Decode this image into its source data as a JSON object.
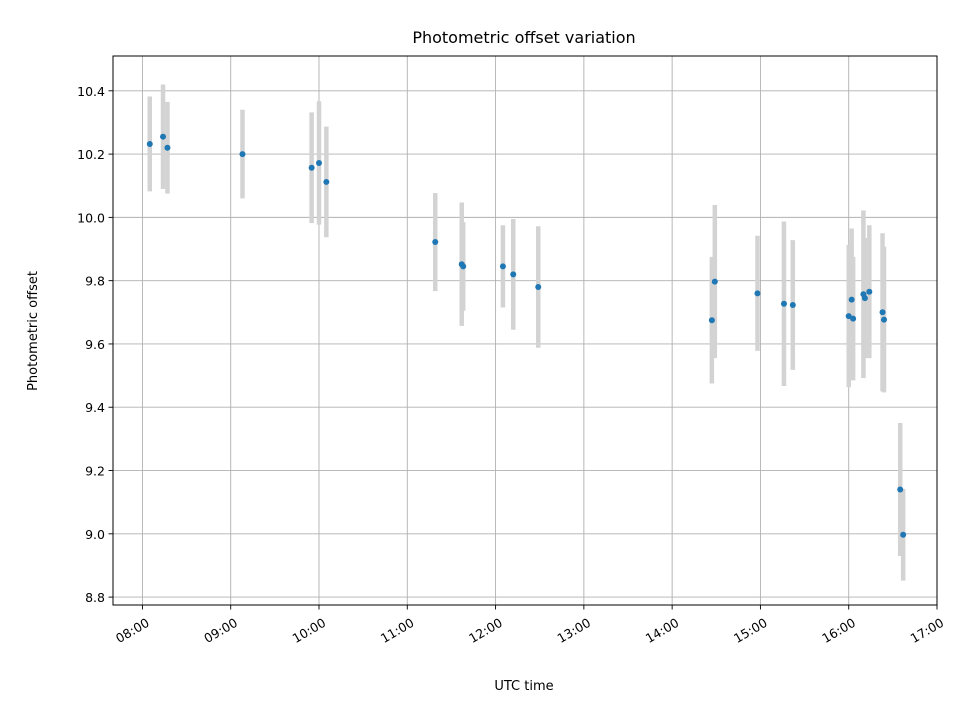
{
  "chart_data": {
    "type": "scatter",
    "title": "Photometric offset variation",
    "xlabel": "UTC time",
    "ylabel": "Photometric offset",
    "xlim": [
      "07:40",
      "17:00"
    ],
    "ylim": [
      8.775,
      10.51
    ],
    "x_ticks": [
      "08:00",
      "09:00",
      "10:00",
      "11:00",
      "12:00",
      "13:00",
      "14:00",
      "15:00",
      "16:00",
      "17:00"
    ],
    "y_ticks": [
      "8.8",
      "9.0",
      "9.2",
      "9.4",
      "9.6",
      "9.8",
      "10.0",
      "10.2",
      "10.4"
    ],
    "grid": true,
    "colors": {
      "point": "#1f77b4",
      "errorbar": "#d3d3d3",
      "grid": "#b0b0b0"
    },
    "points": [
      {
        "t": "08:05",
        "y": 10.232,
        "err": 0.15
      },
      {
        "t": "08:14",
        "y": 10.255,
        "err": 0.165
      },
      {
        "t": "08:17",
        "y": 10.22,
        "err": 0.145
      },
      {
        "t": "09:08",
        "y": 10.2,
        "err": 0.14
      },
      {
        "t": "09:55",
        "y": 10.157,
        "err": 0.175
      },
      {
        "t": "10:00",
        "y": 10.172,
        "err": 0.195
      },
      {
        "t": "10:05",
        "y": 10.112,
        "err": 0.175
      },
      {
        "t": "11:19",
        "y": 9.922,
        "err": 0.155
      },
      {
        "t": "11:37",
        "y": 9.852,
        "err": 0.195
      },
      {
        "t": "11:38",
        "y": 9.845,
        "err": 0.14
      },
      {
        "t": "12:05",
        "y": 9.845,
        "err": 0.13
      },
      {
        "t": "12:12",
        "y": 9.82,
        "err": 0.175
      },
      {
        "t": "12:29",
        "y": 9.78,
        "err": 0.192
      },
      {
        "t": "14:27",
        "y": 9.675,
        "err": 0.2
      },
      {
        "t": "14:29",
        "y": 9.797,
        "err": 0.242
      },
      {
        "t": "14:58",
        "y": 9.76,
        "err": 0.182
      },
      {
        "t": "15:16",
        "y": 9.727,
        "err": 0.26
      },
      {
        "t": "15:22",
        "y": 9.723,
        "err": 0.205
      },
      {
        "t": "16:00",
        "y": 9.688,
        "err": 0.225
      },
      {
        "t": "16:02",
        "y": 9.74,
        "err": 0.225
      },
      {
        "t": "16:03",
        "y": 9.68,
        "err": 0.195
      },
      {
        "t": "16:10",
        "y": 9.757,
        "err": 0.265
      },
      {
        "t": "16:11",
        "y": 9.745,
        "err": 0.19
      },
      {
        "t": "16:14",
        "y": 9.765,
        "err": 0.21
      },
      {
        "t": "16:23",
        "y": 9.7,
        "err": 0.25
      },
      {
        "t": "16:24",
        "y": 9.677,
        "err": 0.23
      },
      {
        "t": "16:35",
        "y": 9.14,
        "err": 0.21
      },
      {
        "t": "16:37",
        "y": 8.997,
        "err": 0.145
      }
    ]
  }
}
